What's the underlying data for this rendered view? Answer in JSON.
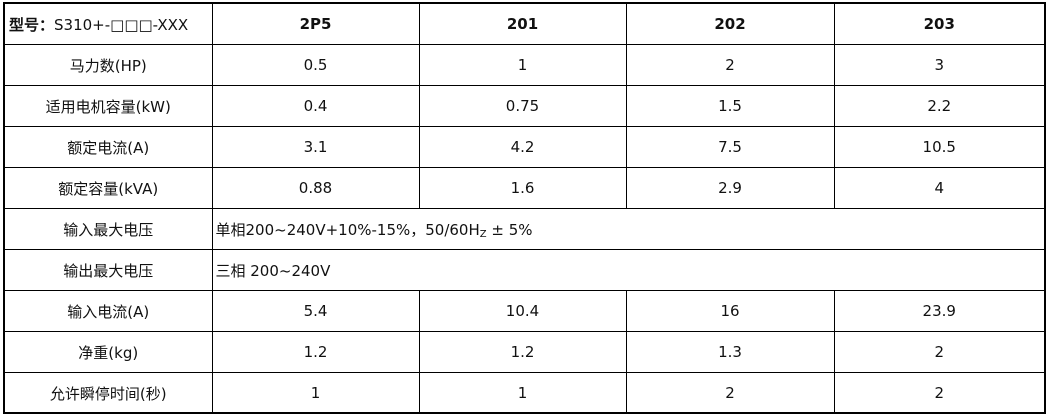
{
  "table": {
    "model_label": "型号：",
    "model_value": "S310+-□□□-XXX",
    "columns": [
      "2P5",
      "201",
      "202",
      "203"
    ],
    "rows": [
      {
        "label": "马力数(HP)",
        "values": [
          "0.5",
          "1",
          "2",
          "3"
        ]
      },
      {
        "label": "适用电机容量(kW)",
        "values": [
          "0.4",
          "0.75",
          "1.5",
          "2.2"
        ]
      },
      {
        "label": "额定电流(A)",
        "values": [
          "3.1",
          "4.2",
          "7.5",
          "10.5"
        ]
      },
      {
        "label": "额定容量(kVA)",
        "values": [
          "0.88",
          "1.6",
          "2.9",
          "4"
        ]
      }
    ],
    "input_voltage": {
      "label": "输入最大电压",
      "value_prefix": "单相200~240V+10%-15%，50/60H",
      "value_sub": "Z",
      "value_suffix": " ± 5%"
    },
    "output_voltage": {
      "label": "输出最大电压",
      "value": "三相 200~240V"
    },
    "rows_after": [
      {
        "label": "输入电流(A)",
        "values": [
          "5.4",
          "10.4",
          "16",
          "23.9"
        ]
      },
      {
        "label": "净重(kg)",
        "values": [
          "1.2",
          "1.2",
          "1.3",
          "2"
        ]
      },
      {
        "label": "允许瞬停时间(秒)",
        "values": [
          "1",
          "1",
          "2",
          "2"
        ]
      }
    ]
  }
}
